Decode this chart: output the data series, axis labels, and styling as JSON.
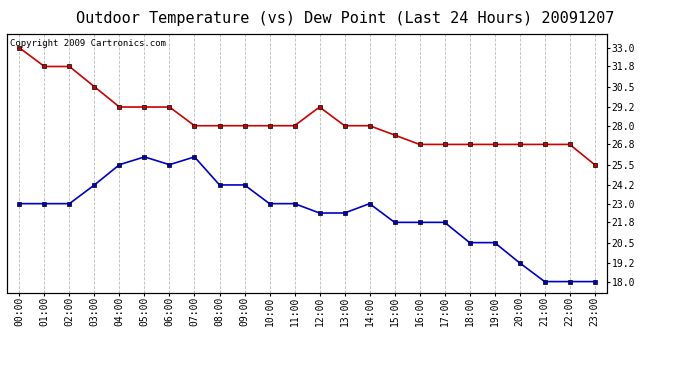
{
  "title": "Outdoor Temperature (vs) Dew Point (Last 24 Hours) 20091207",
  "copyright_text": "Copyright 2009 Cartronics.com",
  "hours": [
    "00:00",
    "01:00",
    "02:00",
    "03:00",
    "04:00",
    "05:00",
    "06:00",
    "07:00",
    "08:00",
    "09:00",
    "10:00",
    "11:00",
    "12:00",
    "13:00",
    "14:00",
    "15:00",
    "16:00",
    "17:00",
    "18:00",
    "19:00",
    "20:00",
    "21:00",
    "22:00",
    "23:00"
  ],
  "temp": [
    33.0,
    31.8,
    31.8,
    30.5,
    29.2,
    29.2,
    29.2,
    28.0,
    28.0,
    28.0,
    28.0,
    28.0,
    29.2,
    28.0,
    28.0,
    27.4,
    26.8,
    26.8,
    26.8,
    26.8,
    26.8,
    26.8,
    26.8,
    25.5
  ],
  "dew": [
    23.0,
    23.0,
    23.0,
    24.2,
    25.5,
    26.0,
    25.5,
    26.0,
    24.2,
    24.2,
    23.0,
    23.0,
    22.4,
    22.4,
    23.0,
    21.8,
    21.8,
    21.8,
    20.5,
    20.5,
    19.2,
    18.0,
    18.0,
    18.0
  ],
  "temp_color": "#cc0000",
  "dew_color": "#0000cc",
  "bg_color": "#ffffff",
  "grid_color": "#bbbbbb",
  "ylim_min": 17.3,
  "ylim_max": 33.9,
  "yticks": [
    18.0,
    19.2,
    20.5,
    21.8,
    23.0,
    24.2,
    25.5,
    26.8,
    28.0,
    29.2,
    30.5,
    31.8,
    33.0
  ],
  "marker": "s",
  "markersize": 3,
  "linewidth": 1.2,
  "title_fontsize": 11,
  "tick_fontsize": 7,
  "copyright_fontsize": 6.5
}
